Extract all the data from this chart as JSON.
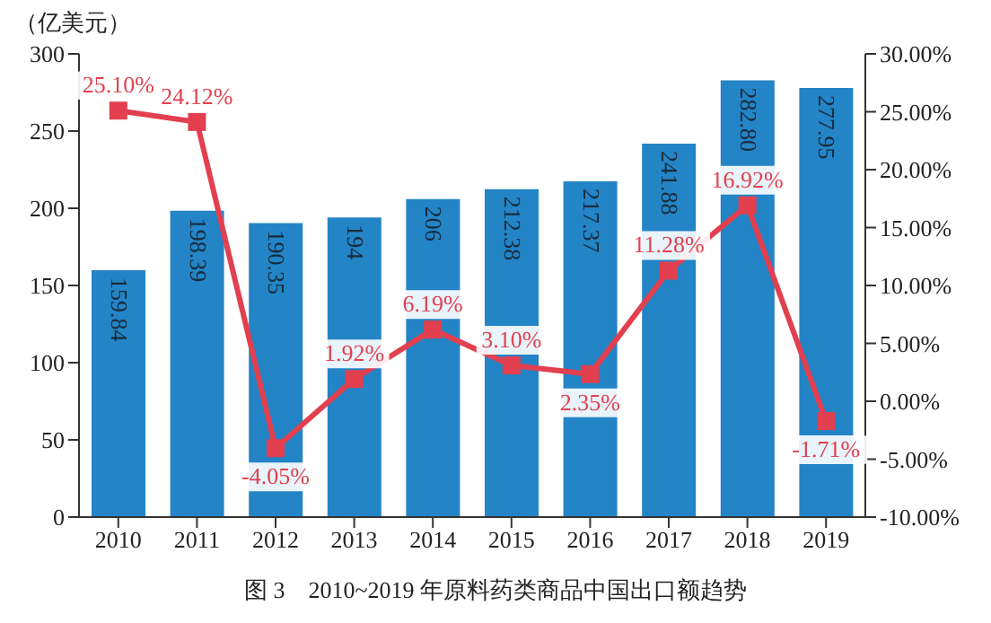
{
  "chart_data": {
    "type": "bar",
    "title": "图 3　2010~2019 年原料药类商品中国出口额趋势",
    "ylabel": "（亿美元）",
    "categories": [
      "2010",
      "2011",
      "2012",
      "2013",
      "2014",
      "2015",
      "2016",
      "2017",
      "2018",
      "2019"
    ],
    "series": [
      {
        "color": "#2384c6",
        "values": [
          159.84,
          198.39,
          190.35,
          194,
          206,
          212.38,
          217.37,
          241.88,
          282.8,
          277.95
        ],
        "value_labels": [
          "159.84",
          "198.39",
          "190.35",
          "194",
          "206",
          "212.38",
          "217.37",
          "241.88",
          "282.80",
          "277.95"
        ]
      },
      {
        "type": "line",
        "axis": "y2",
        "color": "#e2404f",
        "marker": "square",
        "values": [
          25.1,
          24.12,
          -4.05,
          1.92,
          6.19,
          3.1,
          2.35,
          11.28,
          16.92,
          -1.71
        ],
        "value_labels": [
          "25.10%",
          "24.12%",
          "-4.05%",
          "1.92%",
          "6.19%",
          "3.10%",
          "2.35%",
          "11.28%",
          "16.92%",
          "-1.71%"
        ]
      }
    ],
    "ylim": [
      0,
      300
    ],
    "yticks": [
      0,
      50,
      100,
      150,
      200,
      250,
      300
    ],
    "y2lim": [
      -10,
      30
    ],
    "y2ticks": [
      {
        "value": -10,
        "label": "-10.00%"
      },
      {
        "value": -5,
        "label": "-5.00%"
      },
      {
        "value": 0,
        "label": "0.00%"
      },
      {
        "value": 5,
        "label": "5.00%"
      },
      {
        "value": 10,
        "label": "10.00%"
      },
      {
        "value": 15,
        "label": "15.00%"
      },
      {
        "value": 20,
        "label": "20.00%"
      },
      {
        "value": 25,
        "label": "25.00%"
      },
      {
        "value": 30,
        "label": "30.00%"
      }
    ],
    "grid": false,
    "legend": false
  }
}
